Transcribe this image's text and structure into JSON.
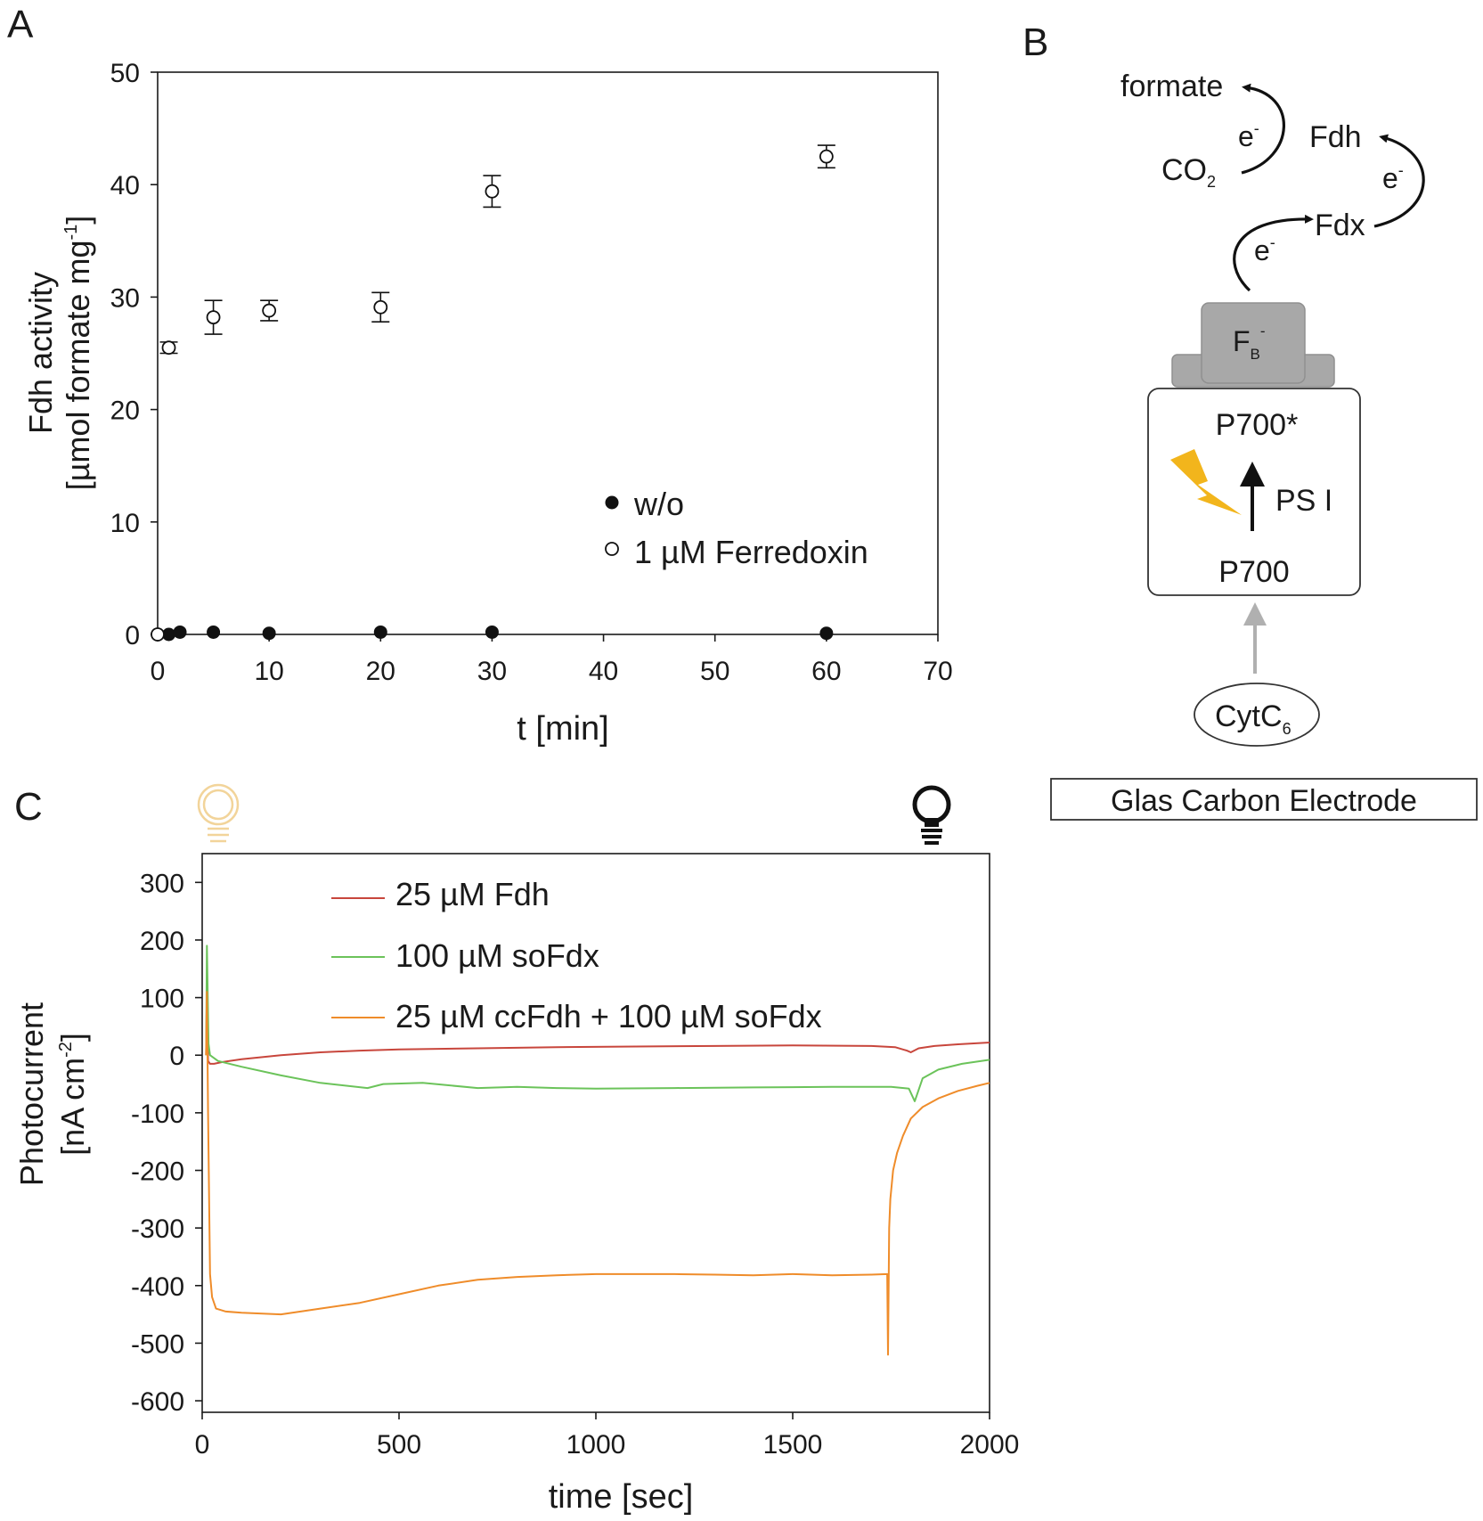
{
  "panels": {
    "A": "A",
    "B": "B",
    "C": "C"
  },
  "chart_data": [
    {
      "id": "panel-a",
      "type": "scatter",
      "xlabel": "t [min]",
      "ylabel_line1": "Fdh activity",
      "ylabel_line2_prefix": "[µmol formate mg",
      "ylabel_line2_sup": "-1",
      "ylabel_line2_suffix": "]",
      "xlim": [
        0,
        70
      ],
      "ylim": [
        0,
        50
      ],
      "xticks": [
        0,
        10,
        20,
        30,
        40,
        50,
        60,
        70
      ],
      "yticks": [
        0,
        10,
        20,
        30,
        40,
        50
      ],
      "grid": false,
      "legend_position": "bottom-right",
      "series": [
        {
          "name": "w/o",
          "marker": "filled-circle",
          "x": [
            0,
            1,
            2,
            5,
            10,
            20,
            30,
            60
          ],
          "y": [
            0,
            0,
            0.2,
            0.2,
            0.1,
            0.2,
            0.2,
            0.1
          ],
          "err": [
            0,
            0,
            0,
            0,
            0,
            0,
            0,
            0
          ]
        },
        {
          "name": "1 µM Ferredoxin",
          "marker": "open-circle",
          "x": [
            0,
            1,
            5,
            10,
            20,
            30,
            60
          ],
          "y": [
            0,
            25.5,
            28.2,
            28.8,
            29.1,
            39.4,
            42.5
          ],
          "err": [
            0,
            0.5,
            1.5,
            0.9,
            1.3,
            1.4,
            1.0
          ]
        }
      ]
    },
    {
      "id": "panel-c",
      "type": "line",
      "xlabel": "time [sec]",
      "ylabel_line1": "Photocurrent",
      "ylabel_line2_prefix": "[nA cm",
      "ylabel_line2_sup": "-2",
      "ylabel_line2_suffix": "]",
      "xlim": [
        0,
        2000
      ],
      "ylim": [
        -620,
        350
      ],
      "xticks": [
        0,
        500,
        1000,
        1500,
        2000
      ],
      "yticks": [
        300,
        200,
        100,
        0,
        -100,
        -200,
        -300,
        -400,
        -500,
        -600
      ],
      "grid": false,
      "legend_position": "top-center",
      "series": [
        {
          "name": "25 µM Fdh",
          "color": "#c8463c",
          "x": [
            10,
            12,
            15,
            20,
            30,
            50,
            100,
            200,
            300,
            400,
            500,
            700,
            900,
            1100,
            1300,
            1500,
            1700,
            1760,
            1790,
            1800,
            1820,
            1860,
            1920,
            2000
          ],
          "y": [
            0,
            120,
            -10,
            -15,
            -15,
            -12,
            -7,
            0,
            5,
            8,
            10,
            12,
            14,
            15,
            16,
            17,
            16,
            14,
            8,
            5,
            12,
            16,
            19,
            22
          ]
        },
        {
          "name": "100 µM soFdx",
          "color": "#6bc35a",
          "x": [
            10,
            12,
            16,
            20,
            40,
            100,
            200,
            300,
            420,
            460,
            560,
            700,
            800,
            900,
            1000,
            1200,
            1400,
            1600,
            1750,
            1795,
            1810,
            1830,
            1870,
            1930,
            2000
          ],
          "y": [
            0,
            190,
            20,
            0,
            -10,
            -20,
            -35,
            -48,
            -57,
            -50,
            -48,
            -57,
            -55,
            -57,
            -58,
            -57,
            -56,
            -55,
            -55,
            -58,
            -80,
            -40,
            -25,
            -15,
            -8
          ]
        },
        {
          "name": "25 µM ccFdh + 100 µM soFdx",
          "color": "#ef8c2a",
          "x": [
            10,
            12,
            15,
            20,
            25,
            35,
            60,
            100,
            200,
            300,
            400,
            500,
            600,
            700,
            800,
            900,
            1000,
            1100,
            1200,
            1300,
            1400,
            1500,
            1600,
            1700,
            1740,
            1742,
            1745,
            1748,
            1755,
            1765,
            1780,
            1800,
            1830,
            1870,
            1920,
            1970,
            2000
          ],
          "y": [
            0,
            110,
            -100,
            -380,
            -420,
            -440,
            -445,
            -447,
            -450,
            -440,
            -430,
            -415,
            -400,
            -390,
            -385,
            -382,
            -380,
            -380,
            -380,
            -381,
            -382,
            -380,
            -382,
            -381,
            -380,
            -520,
            -300,
            -250,
            -200,
            -170,
            -140,
            -110,
            -90,
            -75,
            -62,
            -53,
            -48
          ]
        }
      ]
    }
  ],
  "diagram": {
    "formate": "formate",
    "co2_main": "CO",
    "co2_sub": "2",
    "electron_base": "e",
    "electron_sup": "-",
    "fdh": "Fdh",
    "fdx": "Fdx",
    "fb_main": "F",
    "fb_sub": "B",
    "fb_sup": "-",
    "p700_star": "P700*",
    "ps1": "PS I",
    "p700": "P700",
    "cytc_main": "CytC",
    "cytc_sub": "6",
    "electrode": "Glas Carbon Electrode"
  },
  "colors": {
    "axis": "#1a1a1a",
    "block_gray": "#a8a8a8",
    "block_gray_dark": "#8f8f8f",
    "lightning": "#f2b51c",
    "arrow_gray": "#b0b0b0",
    "bulb_off": "#f2d49a"
  },
  "icons": {
    "bulb_off": "lightbulb-off-icon",
    "bulb_on": "lightbulb-on-icon"
  }
}
